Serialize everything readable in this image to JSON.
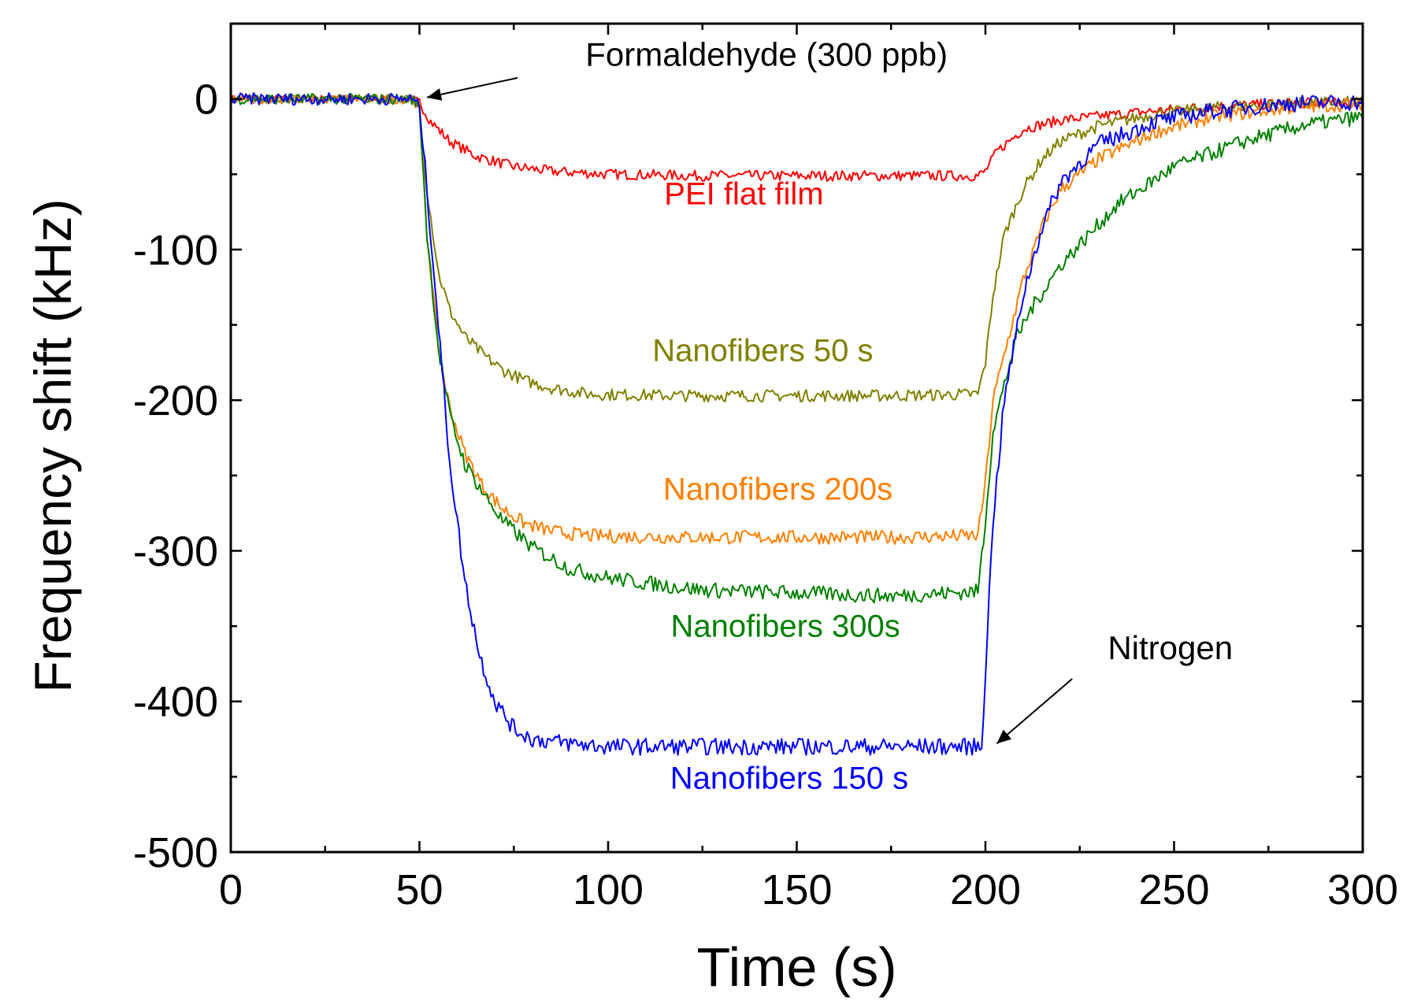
{
  "chart_data": {
    "type": "line",
    "title": "",
    "xlabel": "Time (s)",
    "ylabel": "Frequency shift (kHz)",
    "xlim": [
      0,
      300
    ],
    "ylim": [
      -500,
      50
    ],
    "xticks": [
      0,
      50,
      100,
      150,
      200,
      250,
      300
    ],
    "yticks": [
      -500,
      -400,
      -300,
      -200,
      -100,
      0
    ],
    "xtick_labels": [
      "0",
      "50",
      "100",
      "150",
      "200",
      "250",
      "300"
    ],
    "ytick_labels": [
      "-500",
      "-400",
      "-300",
      "-200",
      "-100",
      "0"
    ],
    "grid": false,
    "series": [
      {
        "name": "PEI flat film",
        "color": "#ff0000",
        "x": [
          0,
          48,
          50,
          53,
          58,
          65,
          75,
          85,
          100,
          125,
          150,
          175,
          198,
          200,
          203,
          210,
          220,
          240,
          260,
          280,
          300
        ],
        "y": [
          0,
          0,
          -2,
          -15,
          -28,
          -38,
          -45,
          -48,
          -50,
          -51,
          -51,
          -51,
          -51,
          -48,
          -35,
          -20,
          -14,
          -9,
          -5,
          -3,
          -2
        ],
        "label_at": [
          136,
          -70
        ]
      },
      {
        "name": "Nanofibers 50 s",
        "color": "#808000",
        "x": [
          0,
          48,
          50,
          52,
          55,
          58,
          62,
          67,
          72,
          78,
          85,
          95,
          120,
          150,
          175,
          198,
          200,
          202,
          205,
          210,
          215,
          220,
          230,
          245,
          260,
          280,
          300
        ],
        "y": [
          0,
          0,
          -5,
          -60,
          -115,
          -140,
          -158,
          -170,
          -180,
          -187,
          -192,
          -196,
          -197,
          -197,
          -197,
          -196,
          -175,
          -130,
          -90,
          -60,
          -40,
          -28,
          -18,
          -10,
          -6,
          -3,
          -2
        ],
        "label_at": [
          141,
          -174
        ]
      },
      {
        "name": "Nanofibers 200s",
        "color": "#ff7f00",
        "x": [
          0,
          48,
          50,
          52,
          55,
          58,
          62,
          67,
          72,
          78,
          85,
          95,
          120,
          150,
          175,
          198,
          200,
          202,
          205,
          210,
          215,
          220,
          230,
          245,
          260,
          280,
          300
        ],
        "y": [
          0,
          0,
          -5,
          -90,
          -165,
          -205,
          -235,
          -258,
          -272,
          -282,
          -287,
          -290,
          -291,
          -291,
          -291,
          -290,
          -255,
          -200,
          -170,
          -120,
          -85,
          -60,
          -40,
          -22,
          -12,
          -6,
          -3
        ],
        "label_at": [
          145,
          -266
        ]
      },
      {
        "name": "Nanofibers 300s",
        "color": "#008000",
        "x": [
          0,
          48,
          50,
          52,
          55,
          58,
          62,
          67,
          72,
          80,
          90,
          100,
          112,
          125,
          150,
          175,
          198,
          200,
          202,
          205,
          208,
          212,
          220,
          235,
          250,
          270,
          285,
          300
        ],
        "y": [
          0,
          0,
          -5,
          -90,
          -165,
          -210,
          -242,
          -262,
          -280,
          -298,
          -312,
          -318,
          -322,
          -326,
          -328,
          -330,
          -327,
          -280,
          -220,
          -190,
          -160,
          -140,
          -110,
          -70,
          -45,
          -27,
          -17,
          -12
        ],
        "label_at": [
          147,
          -357
        ]
      },
      {
        "name": "Nanofibers 150 s",
        "color": "#0000ff",
        "x": [
          0,
          48,
          50,
          52,
          55,
          58,
          62,
          66,
          70,
          75,
          80,
          90,
          100,
          125,
          150,
          175,
          199,
          200,
          202,
          205,
          210,
          215,
          220,
          230,
          245,
          260,
          280,
          300
        ],
        "y": [
          0,
          0,
          -5,
          -60,
          -150,
          -240,
          -320,
          -370,
          -400,
          -418,
          -425,
          -428,
          -430,
          -430,
          -430,
          -430,
          -430,
          -380,
          -280,
          -200,
          -130,
          -85,
          -55,
          -30,
          -15,
          -8,
          -3,
          -2
        ],
        "label_at": [
          148,
          -458
        ]
      }
    ],
    "annotations": [
      {
        "text": "Formaldehyde (300 ppb)",
        "text_at": [
          142,
          22
        ],
        "arrow_from": [
          76,
          14
        ],
        "arrow_to": [
          52,
          1
        ]
      },
      {
        "text": "Nitrogen",
        "text_at": [
          249,
          -372
        ],
        "arrow_from": [
          223,
          -385
        ],
        "arrow_to": [
          203,
          -428
        ]
      }
    ]
  }
}
